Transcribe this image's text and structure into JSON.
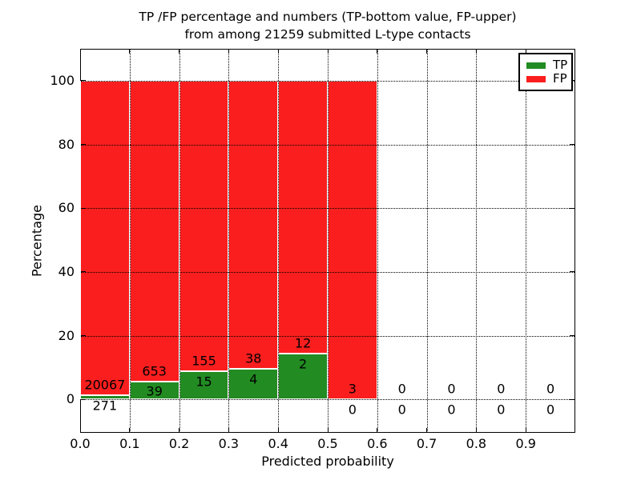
{
  "chart_data": {
    "type": "bar",
    "stacked": true,
    "title_line1": "TP /FP percentage and numbers (TP-bottom value, FP-upper)",
    "title_line2": "from among 21259 submitted L-type contacts",
    "xlabel": "Predicted probability",
    "ylabel": "Percentage",
    "total_submitted": 21259,
    "xlim": [
      0.0,
      1.0
    ],
    "ylim": [
      -10.5,
      110
    ],
    "bin_width": 0.1,
    "xtick_labels": [
      "0.0",
      "0.1",
      "0.2",
      "0.3",
      "0.4",
      "0.5",
      "0.6",
      "0.7",
      "0.8",
      "0.9"
    ],
    "ytick_values": [
      0,
      20,
      40,
      60,
      80,
      100
    ],
    "grid": {
      "style": "dotted",
      "color": "#000000",
      "on": true
    },
    "annotation_note": "upper number = FP count, lower number = TP count",
    "bins": [
      {
        "range": "0.0-0.1",
        "tp": 271,
        "fp": 20067,
        "tp_pct": 1.33,
        "fp_pct": 98.67,
        "total_pct": 100
      },
      {
        "range": "0.1-0.2",
        "tp": 39,
        "fp": 653,
        "tp_pct": 5.64,
        "fp_pct": 94.36,
        "total_pct": 100
      },
      {
        "range": "0.2-0.3",
        "tp": 15,
        "fp": 155,
        "tp_pct": 8.82,
        "fp_pct": 91.18,
        "total_pct": 100
      },
      {
        "range": "0.3-0.4",
        "tp": 4,
        "fp": 38,
        "tp_pct": 9.52,
        "fp_pct": 90.48,
        "total_pct": 100
      },
      {
        "range": "0.4-0.5",
        "tp": 2,
        "fp": 12,
        "tp_pct": 14.29,
        "fp_pct": 85.71,
        "total_pct": 100
      },
      {
        "range": "0.5-0.6",
        "tp": 0,
        "fp": 3,
        "tp_pct": 0,
        "fp_pct": 100,
        "total_pct": 100
      },
      {
        "range": "0.6-0.7",
        "tp": 0,
        "fp": 0,
        "tp_pct": 0,
        "fp_pct": 0,
        "total_pct": 0
      },
      {
        "range": "0.7-0.8",
        "tp": 0,
        "fp": 0,
        "tp_pct": 0,
        "fp_pct": 0,
        "total_pct": 0
      },
      {
        "range": "0.8-0.9",
        "tp": 0,
        "fp": 0,
        "tp_pct": 0,
        "fp_pct": 0,
        "total_pct": 0
      },
      {
        "range": "0.9-1.0",
        "tp": 0,
        "fp": 0,
        "tp_pct": 0,
        "fp_pct": 0,
        "total_pct": 0
      }
    ],
    "colors": {
      "tp": "#228b22",
      "fp": "#fa1e1e",
      "grid": "#000000",
      "bar_edge": "#ffffff",
      "text": "#000000"
    },
    "legend": {
      "position": "upper-right",
      "items": [
        {
          "label": "TP",
          "color": "#228b22"
        },
        {
          "label": "FP",
          "color": "#fa1e1e"
        }
      ]
    }
  }
}
